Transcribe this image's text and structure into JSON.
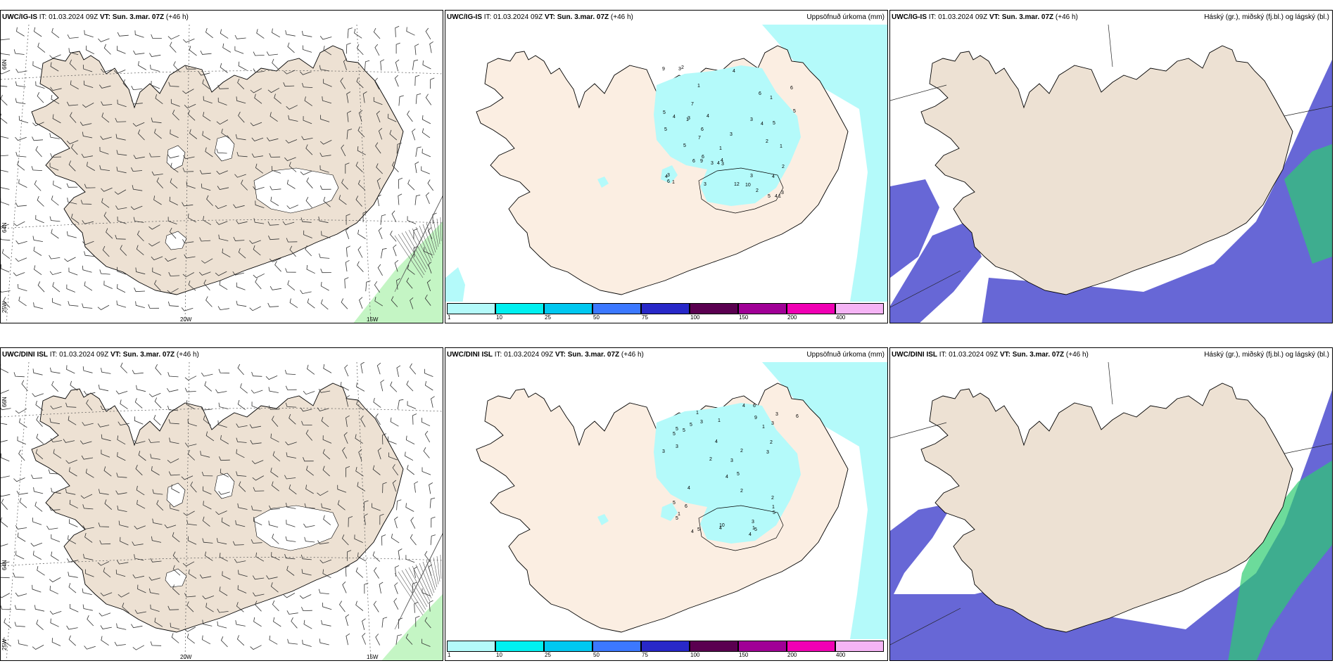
{
  "panels": [
    {
      "model": "UWC/IG-IS",
      "it_label": "IT:",
      "it": "01.03.2024 09Z",
      "vt_label": "VT:",
      "vt": "Sun. 3.mar. 07Z",
      "lead": "(+46 h)",
      "right_title": ""
    },
    {
      "model": "UWC/IG-IS",
      "it_label": "IT:",
      "it": "01.03.2024 09Z",
      "vt_label": "VT:",
      "vt": "Sun. 3.mar. 07Z",
      "lead": "(+46 h)",
      "right_title": "Uppsöfnuð úrkoma (mm)"
    },
    {
      "model": "UWC/IG-IS",
      "it_label": "IT:",
      "it": "01.03.2024 09Z",
      "vt_label": "VT:",
      "vt": "Sun. 3.mar. 07Z",
      "lead": "(+46 h)",
      "right_title": "Háský (gr.), miðský (fj.bl.) og lágský (bl.)"
    },
    {
      "model": "UWC/DINI ISL",
      "it_label": "IT:",
      "it": "01.03.2024 09Z",
      "vt_label": "VT:",
      "vt": "Sun. 3.mar. 07Z",
      "lead": "(+46 h)",
      "right_title": ""
    },
    {
      "model": "UWC/DINI ISL",
      "it_label": "IT:",
      "it": "01.03.2024 09Z",
      "vt_label": "VT:",
      "vt": "Sun. 3.mar. 07Z",
      "lead": "(+46 h)",
      "right_title": "Uppsöfnuð úrkoma (mm)"
    },
    {
      "model": "UWC/DINI ISL",
      "it_label": "IT:",
      "it": "01.03.2024 09Z",
      "vt_label": "VT:",
      "vt": "Sun. 3.mar. 07Z",
      "lead": "(+46 h)",
      "right_title": "Háský (gr.), miðský (fj.bl.) og lágský (bl.)"
    }
  ],
  "grid_labels": {
    "lat66": "66N",
    "lat64": "64N",
    "lon25": "25W",
    "lon20": "20W",
    "lon15": "15W"
  },
  "precip_scale": {
    "labels": [
      "1",
      "10",
      "25",
      "50",
      "75",
      "100",
      "150",
      "200",
      "400"
    ],
    "colors": [
      "#b4fafa",
      "#00f0f0",
      "#00c8f0",
      "#3c78ff",
      "#2828c8",
      "#5a0050",
      "#a00096",
      "#f000b4",
      "#f5b4f5"
    ]
  },
  "precip_values_top": [
    "1",
    "1",
    "3",
    "2",
    "1",
    "1",
    "4",
    "7",
    "9",
    "4",
    "5",
    "4",
    "9",
    "5",
    "6",
    "3",
    "3",
    "5",
    "6",
    "4",
    "4",
    "3",
    "10",
    "6",
    "4",
    "3",
    "12",
    "3",
    "1",
    "4",
    "6",
    "3",
    "1",
    "2",
    "6",
    "5",
    "4",
    "2",
    "5",
    "3",
    "5",
    "3",
    "1",
    "2",
    "3",
    "6",
    "4",
    "7"
  ],
  "precip_values_bottom": [
    "1",
    "2",
    "1",
    "5",
    "3",
    "5",
    "5",
    "4",
    "9",
    "1",
    "1",
    "6",
    "4",
    "3",
    "10",
    "5",
    "3",
    "3",
    "5",
    "4",
    "4",
    "4",
    "2",
    "3",
    "5",
    "6",
    "3",
    "1",
    "2",
    "4",
    "5",
    "3",
    "1",
    "2",
    "5",
    "5",
    "4",
    "5",
    "6",
    "3",
    "2"
  ],
  "colors": {
    "land": "#ede1d3",
    "land_light": "#fbeee2",
    "precip": "#b4fafa",
    "cloud_low": "#5a5ad2",
    "cloud_high": "#2ecc71",
    "warn_green": "#c4f5c4"
  }
}
